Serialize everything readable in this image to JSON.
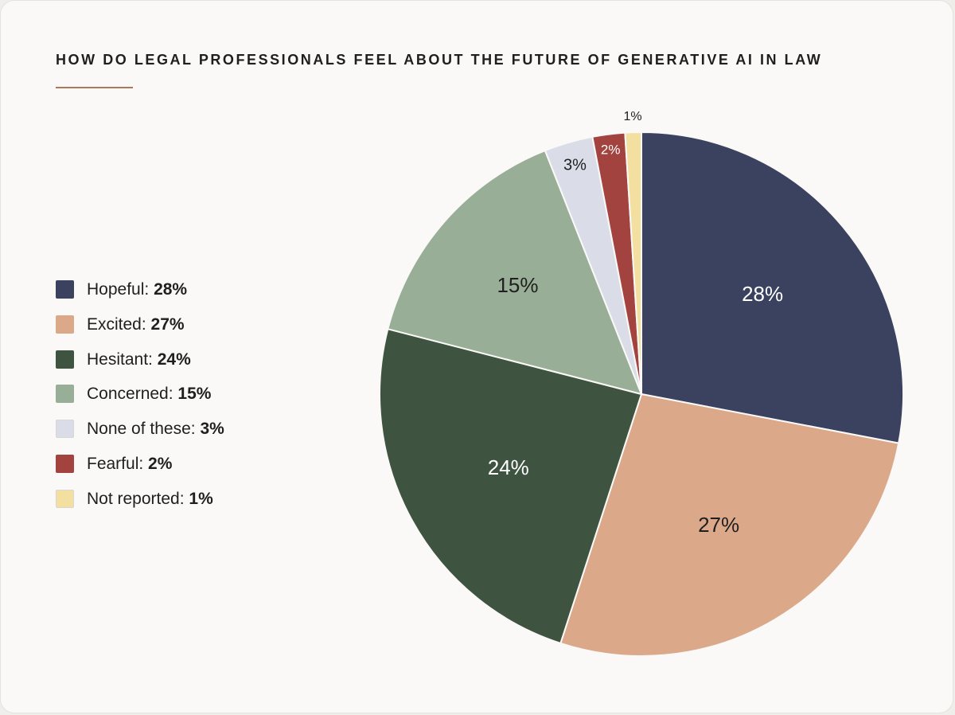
{
  "chart_data": {
    "type": "pie",
    "title": "HOW DO LEGAL PROFESSIONALS FEEL ABOUT THE FUTURE OF GENERATIVE AI IN LAW",
    "slices": [
      {
        "name": "Hopeful",
        "legend_label": "Hopeful:",
        "value": 28,
        "label": "28%",
        "legend_value": "28%",
        "color": "#3a4260",
        "text_color": "#ffffff"
      },
      {
        "name": "Excited",
        "legend_label": "Excited:",
        "value": 27,
        "label": "27%",
        "legend_value": "27%",
        "color": "#dba98a",
        "text_color": "#1f1f1f"
      },
      {
        "name": "Hesitant",
        "legend_label": "Hesitant:",
        "value": 24,
        "label": "24%",
        "legend_value": "24%",
        "color": "#3e5440",
        "text_color": "#ffffff"
      },
      {
        "name": "Concerned",
        "legend_label": "Concerned:",
        "value": 15,
        "label": "15%",
        "legend_value": "15%",
        "color": "#98ae96",
        "text_color": "#1f1f1f"
      },
      {
        "name": "None of these",
        "legend_label": "None of these:",
        "value": 3,
        "label": "3%",
        "legend_value": "3%",
        "color": "#dadde8",
        "text_color": "#1f1f1f"
      },
      {
        "name": "Fearful",
        "legend_label": "Fearful:",
        "value": 2,
        "label": "2%",
        "legend_value": "2%",
        "color": "#a2433f",
        "text_color": "#ffffff"
      },
      {
        "name": "Not reported",
        "legend_label": "Not reported:",
        "value": 1,
        "label": "1%",
        "legend_value": "1%",
        "color": "#f3e0a0",
        "text_color": "#1f1f1f"
      }
    ],
    "legend_position": "left",
    "start_angle": "12 o'clock",
    "direction": "clockwise"
  },
  "colors": {
    "accent_rule": "#b0765a",
    "background": "#faf9f7"
  }
}
